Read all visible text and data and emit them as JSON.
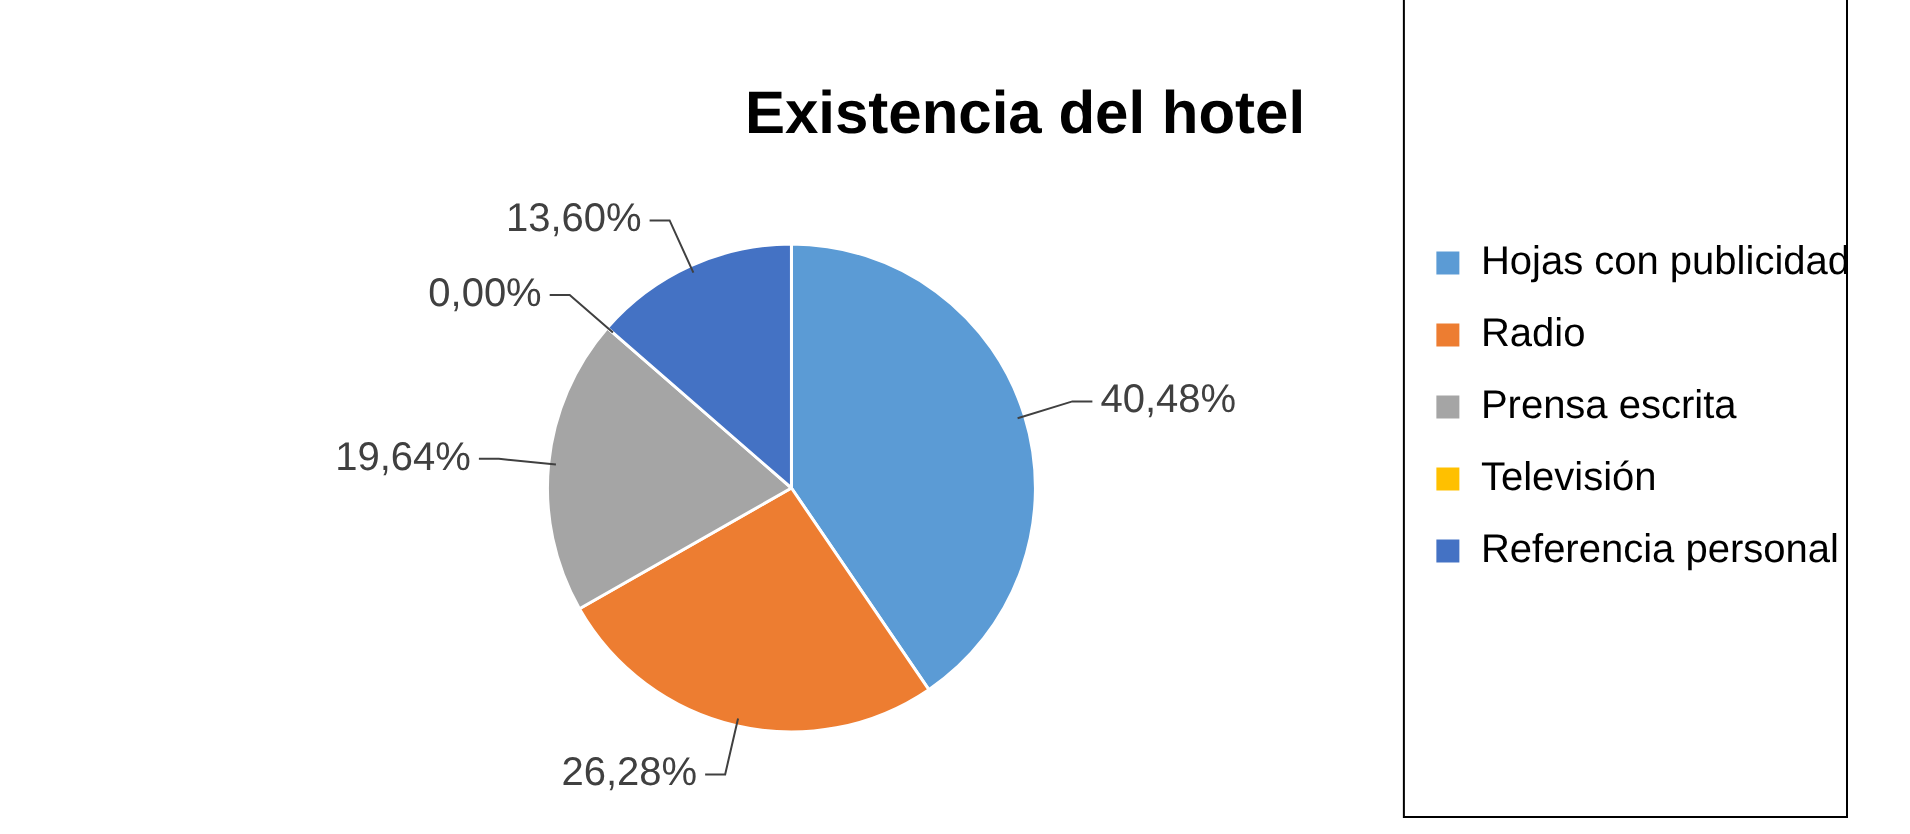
{
  "chart_data": {
    "type": "pie",
    "title": "Existencia del hotel",
    "categories": [
      "Hojas con publicidad",
      "Radio",
      "Prensa escrita",
      "Televisión",
      "Referencia personal"
    ],
    "values": [
      40.48,
      26.28,
      19.64,
      0.0,
      13.6
    ],
    "value_labels": [
      "40,48%",
      "26,28%",
      "19,64%",
      "0,00%",
      "13,60%"
    ],
    "colors": [
      "#5b9bd5",
      "#ed7d31",
      "#a5a5a5",
      "#ffc000",
      "#4472c4"
    ],
    "legend": "right"
  }
}
